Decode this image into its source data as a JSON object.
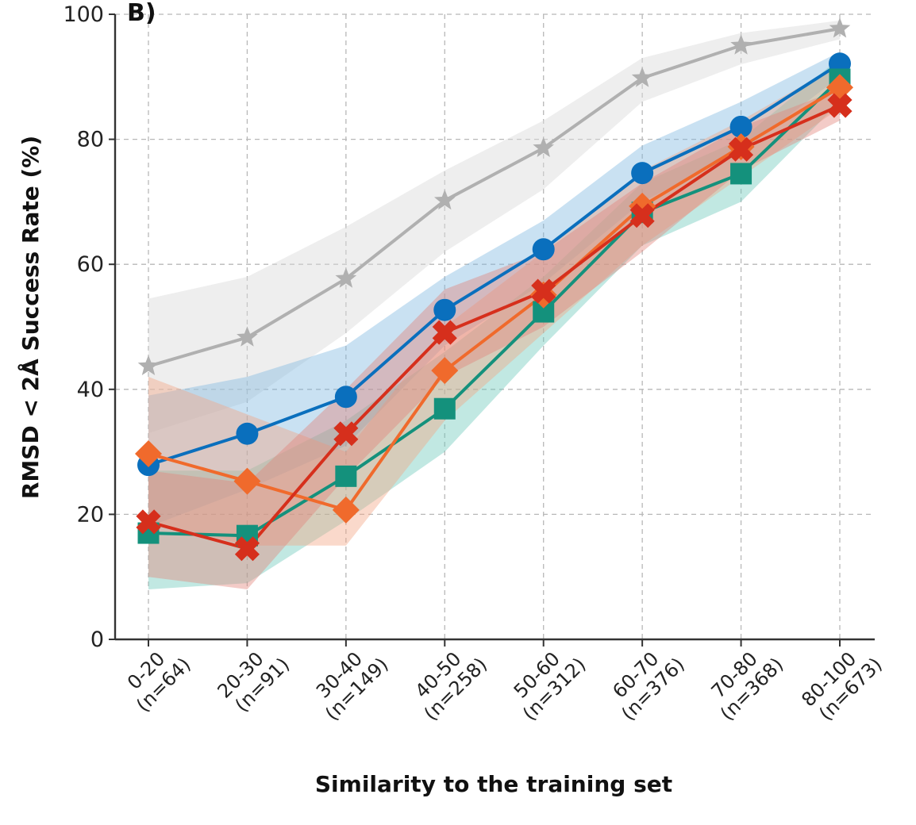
{
  "chart_data": {
    "type": "line",
    "panel_label": "B)",
    "title": "",
    "xlabel": "Similarity to the training set",
    "ylabel": "RMSD < 2Å Success Rate (%)",
    "ylim": [
      0,
      100
    ],
    "yticks": [
      0,
      20,
      40,
      60,
      80,
      100
    ],
    "grid": true,
    "legend": "none",
    "categories": [
      "0-20",
      "20-30",
      "30-40",
      "40-50",
      "50-60",
      "60-70",
      "70-80",
      "80-100"
    ],
    "category_counts": [
      "(n=64)",
      "(n=91)",
      "(n=149)",
      "(n=258)",
      "(n=312)",
      "(n=376)",
      "(n=368)",
      "(n=673)"
    ],
    "series": [
      {
        "name": "gray-star",
        "marker": "star",
        "color": "#b0b0b0",
        "band_color": "#d9d9d9",
        "values": [
          43.7,
          48.3,
          57.7,
          70.2,
          78.6,
          89.8,
          95.0,
          97.7
        ],
        "band_lower": [
          33,
          38,
          49,
          62,
          72,
          86,
          92,
          96
        ],
        "band_upper": [
          54.5,
          58,
          66,
          75,
          83,
          93,
          97,
          99
        ]
      },
      {
        "name": "blue-circle",
        "marker": "circle",
        "color": "#0a6fbd",
        "band_color": "#7fb8e0",
        "values": [
          27.9,
          32.9,
          38.8,
          52.7,
          62.4,
          74.6,
          82.0,
          92.1
        ],
        "band_lower": [
          18,
          24,
          31,
          47,
          57,
          70,
          78,
          90
        ],
        "band_upper": [
          39,
          42,
          47,
          58,
          67,
          79,
          86,
          94
        ]
      },
      {
        "name": "green-square",
        "marker": "square",
        "color": "#14917c",
        "band_color": "#6cc7bb",
        "values": [
          17.0,
          16.6,
          26.1,
          36.9,
          52.4,
          68.3,
          74.5,
          89.6
        ],
        "band_lower": [
          8,
          9,
          19,
          30,
          47,
          63,
          70,
          86
        ],
        "band_upper": [
          27,
          27,
          35,
          46,
          58,
          73,
          80,
          93
        ]
      },
      {
        "name": "orange-diamond",
        "marker": "diamond",
        "color": "#f06a2c",
        "band_color": "#f4a582",
        "values": [
          29.7,
          25.3,
          20.7,
          43.0,
          55.1,
          69.3,
          78.8,
          88.3
        ],
        "band_lower": [
          19,
          15,
          15,
          35,
          49,
          63,
          74,
          85
        ],
        "band_upper": [
          42,
          36,
          30,
          50,
          62,
          75,
          83,
          92
        ]
      },
      {
        "name": "red-x",
        "marker": "x",
        "color": "#d62f1c",
        "band_color": "#e3837a",
        "values": [
          18.8,
          14.5,
          32.9,
          49.1,
          55.7,
          67.8,
          78.4,
          85.4
        ],
        "band_lower": [
          10,
          8,
          26,
          42,
          50,
          62,
          75,
          83
        ],
        "band_upper": [
          27,
          25,
          40,
          56,
          62,
          73,
          82,
          88
        ]
      }
    ]
  }
}
